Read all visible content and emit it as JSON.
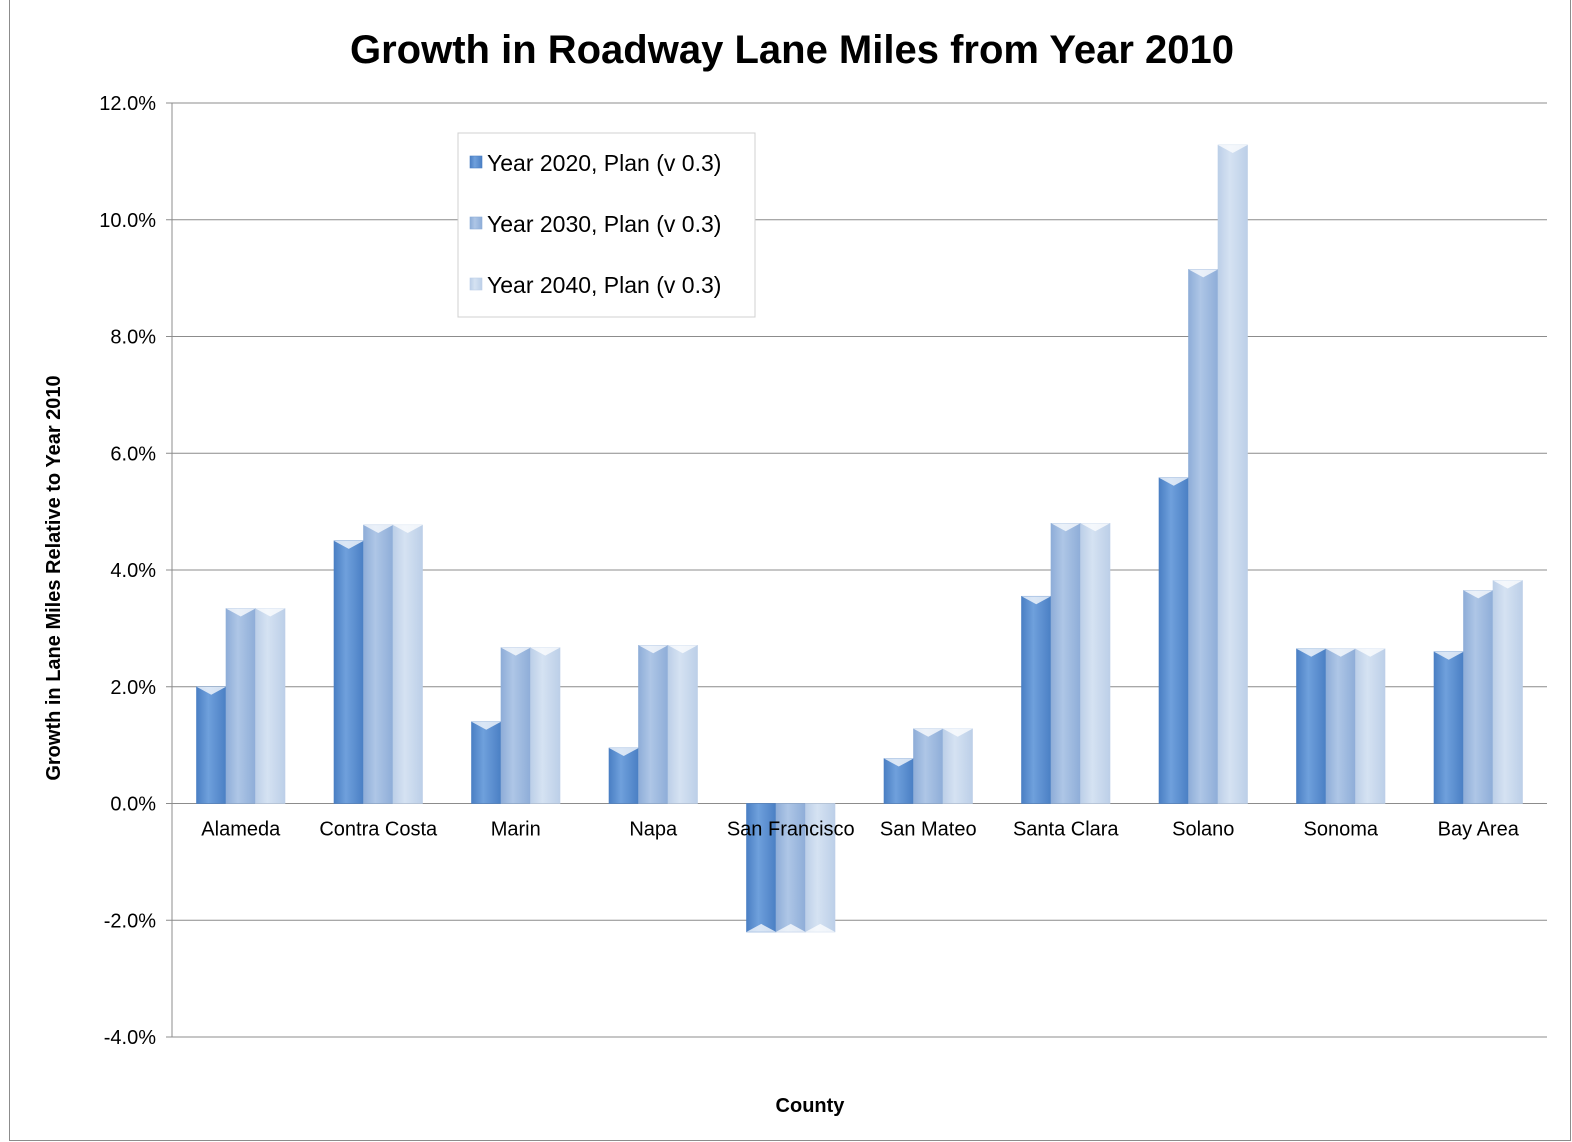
{
  "chart_data": {
    "type": "bar",
    "title": "Growth in Roadway Lane Miles from Year 2010",
    "xlabel": "County",
    "ylabel": "Growth in Lane Miles Relative to Year 2010",
    "ylim": [
      -0.04,
      0.12
    ],
    "yticks": [
      "-4.0%",
      "-2.0%",
      "0.0%",
      "2.0%",
      "4.0%",
      "6.0%",
      "8.0%",
      "10.0%",
      "12.0%"
    ],
    "ytick_values": [
      -0.04,
      -0.02,
      0.0,
      0.02,
      0.04,
      0.06,
      0.08,
      0.1,
      0.12
    ],
    "grid": true,
    "legend_position": "top-left inside plot",
    "categories": [
      "Alameda",
      "Contra Costa",
      "Marin",
      "Napa",
      "San Francisco",
      "San Mateo",
      "Santa Clara",
      "Solano",
      "Sonoma",
      "Bay Area"
    ],
    "series": [
      {
        "name": "Year 2020, Plan (v 0.3)",
        "color": "#4a7fc4",
        "light": "#6fa0dc",
        "values": [
          0.02,
          0.045,
          0.014,
          0.0095,
          -0.022,
          0.0077,
          0.0355,
          0.0558,
          0.0265,
          0.026
        ]
      },
      {
        "name": "Year 2030, Plan (v 0.3)",
        "color": "#8eadd8",
        "light": "#aec6e6",
        "values": [
          0.0334,
          0.0477,
          0.0267,
          0.0271,
          -0.022,
          0.0128,
          0.048,
          0.0915,
          0.0265,
          0.0365
        ]
      },
      {
        "name": "Year 2040, Plan (v 0.3)",
        "color": "#bccfe8",
        "light": "#d5e2f2",
        "values": [
          0.0334,
          0.0477,
          0.0267,
          0.0271,
          -0.022,
          0.0128,
          0.048,
          0.1128,
          0.0265,
          0.0382
        ]
      }
    ]
  }
}
